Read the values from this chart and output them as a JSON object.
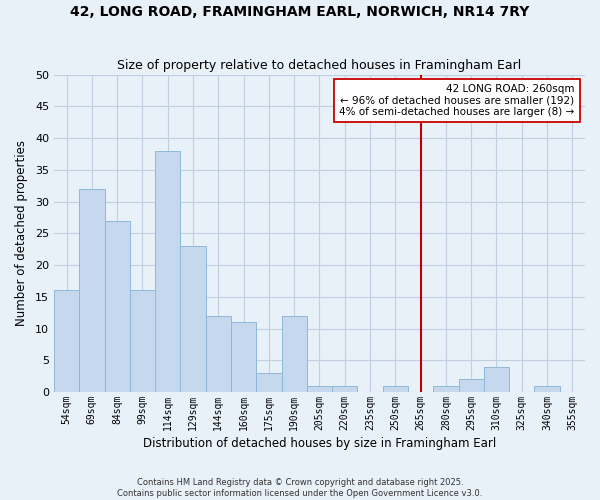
{
  "title": "42, LONG ROAD, FRAMINGHAM EARL, NORWICH, NR14 7RY",
  "subtitle": "Size of property relative to detached houses in Framingham Earl",
  "xlabel": "Distribution of detached houses by size in Framingham Earl",
  "ylabel": "Number of detached properties",
  "bin_labels": [
    "54sqm",
    "69sqm",
    "84sqm",
    "99sqm",
    "114sqm",
    "129sqm",
    "144sqm",
    "160sqm",
    "175sqm",
    "190sqm",
    "205sqm",
    "220sqm",
    "235sqm",
    "250sqm",
    "265sqm",
    "280sqm",
    "295sqm",
    "310sqm",
    "325sqm",
    "340sqm",
    "355sqm"
  ],
  "bin_values": [
    16,
    32,
    27,
    16,
    38,
    23,
    12,
    11,
    3,
    12,
    1,
    1,
    0,
    1,
    0,
    1,
    2,
    4,
    0,
    1,
    0
  ],
  "bar_color": "#c5d8ed",
  "bar_edge_color": "#8fb8d8",
  "grid_color": "#c0d0e0",
  "bg_color": "#e8f0f8",
  "vline_x_index": 14,
  "vline_color": "#bb0000",
  "annotation_text": "42 LONG ROAD: 260sqm\n← 96% of detached houses are smaller (192)\n4% of semi-detached houses are larger (8) →",
  "annotation_box_color": "#ffffff",
  "annotation_box_edge": "#cc0000",
  "ylim": [
    0,
    50
  ],
  "yticks": [
    0,
    5,
    10,
    15,
    20,
    25,
    30,
    35,
    40,
    45,
    50
  ],
  "footer1": "Contains HM Land Registry data © Crown copyright and database right 2025.",
  "footer2": "Contains public sector information licensed under the Open Government Licence v3.0."
}
